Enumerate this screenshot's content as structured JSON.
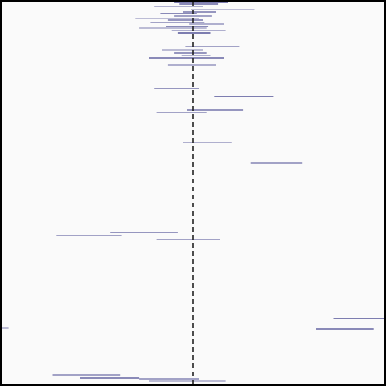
{
  "chart_data": {
    "type": "forest",
    "title": "",
    "xlabel": "",
    "ylabel": "",
    "grid": false,
    "legend": "none",
    "xlim": [
      -1,
      1
    ],
    "reference_x": 0,
    "colors": {
      "background": "#fafafa",
      "frame": "#000000",
      "interval": "#000066",
      "interval_faint": "#8888bb",
      "reference_line": "#222222"
    },
    "rows": [
      {
        "lo": -0.1,
        "hi": 0.18,
        "strength": 1.0
      },
      {
        "lo": -0.07,
        "hi": 0.13,
        "strength": 0.9
      },
      {
        "lo": -0.2,
        "hi": 0.05,
        "strength": 0.6
      },
      {
        "lo": -0.01,
        "hi": 0.32,
        "strength": 0.5
      },
      {
        "lo": -0.05,
        "hi": 0.12,
        "strength": 0.8
      },
      {
        "lo": -0.17,
        "hi": 0.02,
        "strength": 0.9
      },
      {
        "lo": -0.1,
        "hi": 0.1,
        "strength": 0.7
      },
      {
        "lo": -0.3,
        "hi": 0.03,
        "strength": 0.5
      },
      {
        "lo": -0.13,
        "hi": 0.05,
        "strength": 0.8
      },
      {
        "lo": -0.22,
        "hi": 0.06,
        "strength": 0.7
      },
      {
        "lo": -0.02,
        "hi": 0.16,
        "strength": 0.6
      },
      {
        "lo": -0.14,
        "hi": 0.08,
        "strength": 0.9
      },
      {
        "lo": -0.28,
        "hi": 0.07,
        "strength": 0.5
      },
      {
        "lo": -0.11,
        "hi": 0.17,
        "strength": 0.6
      },
      {
        "lo": -0.08,
        "hi": 0.09,
        "strength": 1.0
      },
      {
        "lo": -0.04,
        "hi": 0.24,
        "strength": 0.7
      },
      {
        "lo": -0.16,
        "hi": 0.05,
        "strength": 0.5
      },
      {
        "lo": -0.1,
        "hi": 0.07,
        "strength": 0.8
      },
      {
        "lo": -0.06,
        "hi": 0.09,
        "strength": 0.6
      },
      {
        "lo": -0.23,
        "hi": 0.16,
        "strength": 0.9
      },
      {
        "lo": -0.13,
        "hi": 0.12,
        "strength": 0.6
      },
      {
        "lo": -0.2,
        "hi": 0.03,
        "strength": 0.8
      },
      {
        "lo": 0.11,
        "hi": 0.42,
        "strength": 1.0
      },
      {
        "lo": -0.03,
        "hi": 0.26,
        "strength": 0.8
      },
      {
        "lo": -0.19,
        "hi": 0.07,
        "strength": 0.7
      },
      {
        "lo": -0.05,
        "hi": 0.2,
        "strength": 0.6
      },
      {
        "lo": 0.3,
        "hi": 0.57,
        "strength": 0.7
      },
      {
        "lo": -0.43,
        "hi": -0.08,
        "strength": 0.8
      },
      {
        "lo": -0.71,
        "hi": -0.37,
        "strength": 0.7
      },
      {
        "lo": -0.19,
        "hi": 0.14,
        "strength": 0.7
      },
      {
        "lo": 0.73,
        "hi": 1.0,
        "strength": 1.0
      },
      {
        "lo": 0.64,
        "hi": 0.94,
        "strength": 0.9
      },
      {
        "lo": -1.0,
        "hi": -0.96,
        "strength": 0.5
      },
      {
        "lo": -0.73,
        "hi": -0.38,
        "strength": 0.7
      },
      {
        "lo": -0.59,
        "hi": -0.28,
        "strength": 0.9
      },
      {
        "lo": -0.28,
        "hi": 0.03,
        "strength": 0.7
      },
      {
        "lo": -0.23,
        "hi": 0.17,
        "strength": 0.5
      }
    ]
  }
}
